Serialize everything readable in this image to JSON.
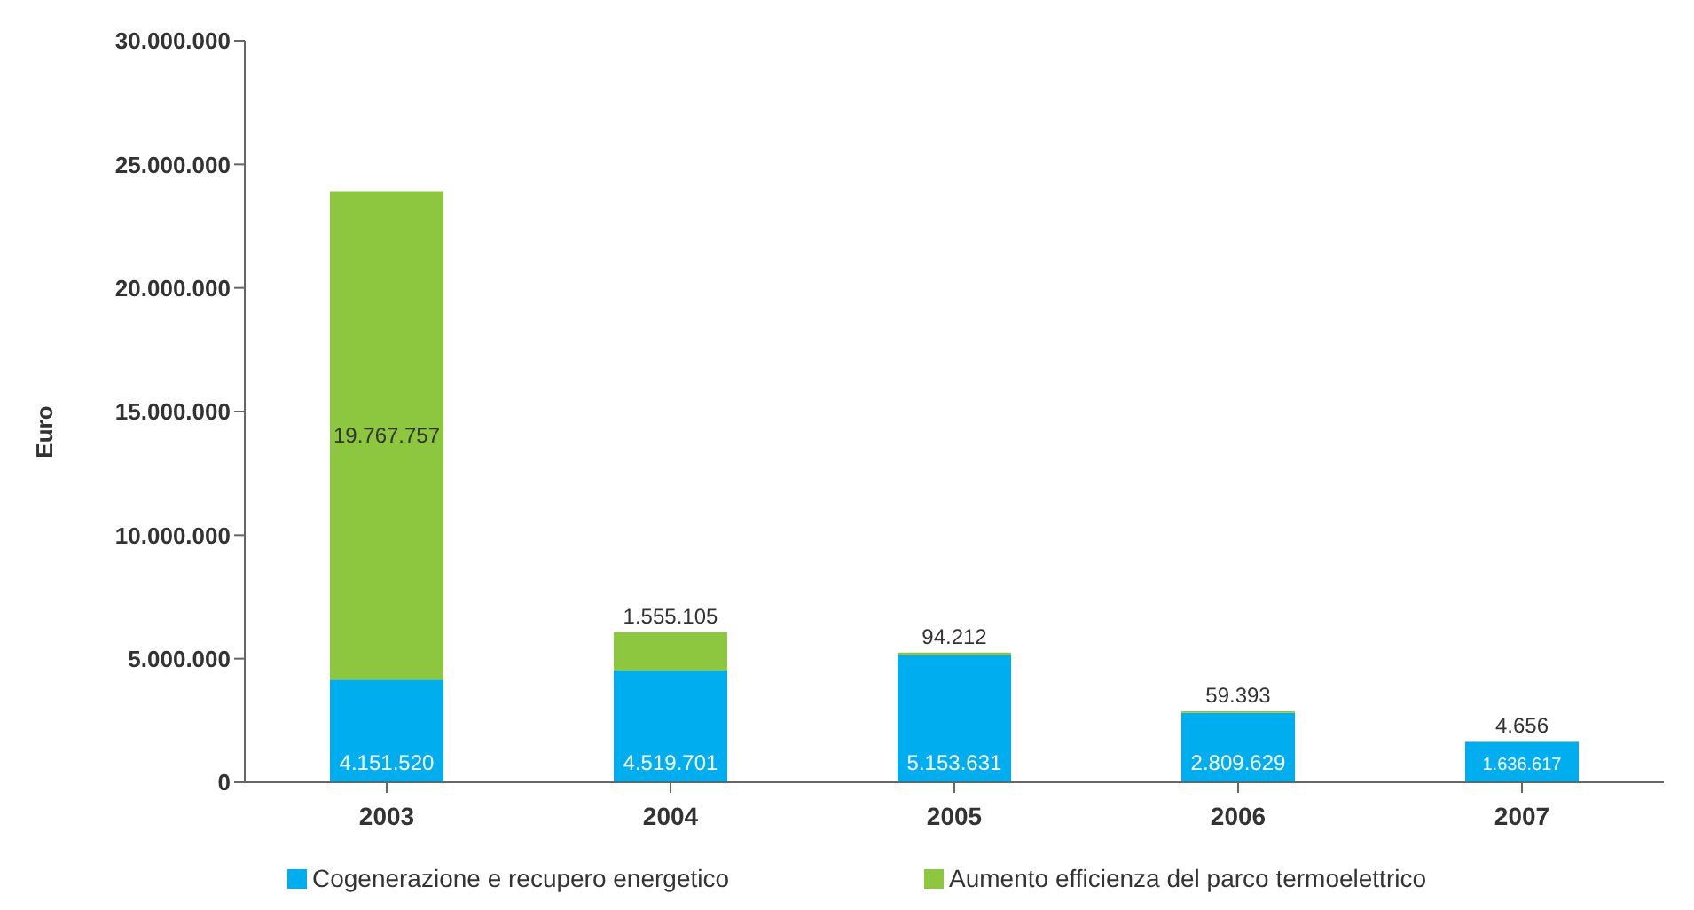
{
  "chart_data": {
    "type": "bar",
    "stacked": true,
    "ylabel": "Euro",
    "categories": [
      "2003",
      "2004",
      "2005",
      "2006",
      "2007"
    ],
    "series": [
      {
        "name": "Cogenerazione e recupero energetico",
        "color": "#00aeef",
        "values": [
          4151520,
          4519701,
          5153631,
          2809629,
          1636617
        ],
        "value_labels": [
          "4.151.520",
          "4.519.701",
          "5.153.631",
          "2.809.629",
          "1.636.617"
        ]
      },
      {
        "name": "Aumento efficienza del parco termoelettrico",
        "color": "#8dc63f",
        "values": [
          19767757,
          1555105,
          94212,
          59393,
          4656
        ],
        "value_labels": [
          "19.767.757",
          "1.555.105",
          "94.212",
          "59.393",
          "4.656"
        ]
      }
    ],
    "ylim": [
      0,
      30000000
    ],
    "yticks": [
      0,
      {
        "value": 5000000,
        "label": "5.000.000"
      },
      {
        "value": 10000000,
        "label": "10.000.000"
      },
      {
        "value": 15000000,
        "label": "15.000.000"
      },
      {
        "value": 20000000,
        "label": "20.000.000"
      },
      {
        "value": 25000000,
        "label": "25.000.000"
      },
      {
        "value": 30000000,
        "label": "30.000.000"
      }
    ],
    "grid": false,
    "legend": "bottom"
  }
}
